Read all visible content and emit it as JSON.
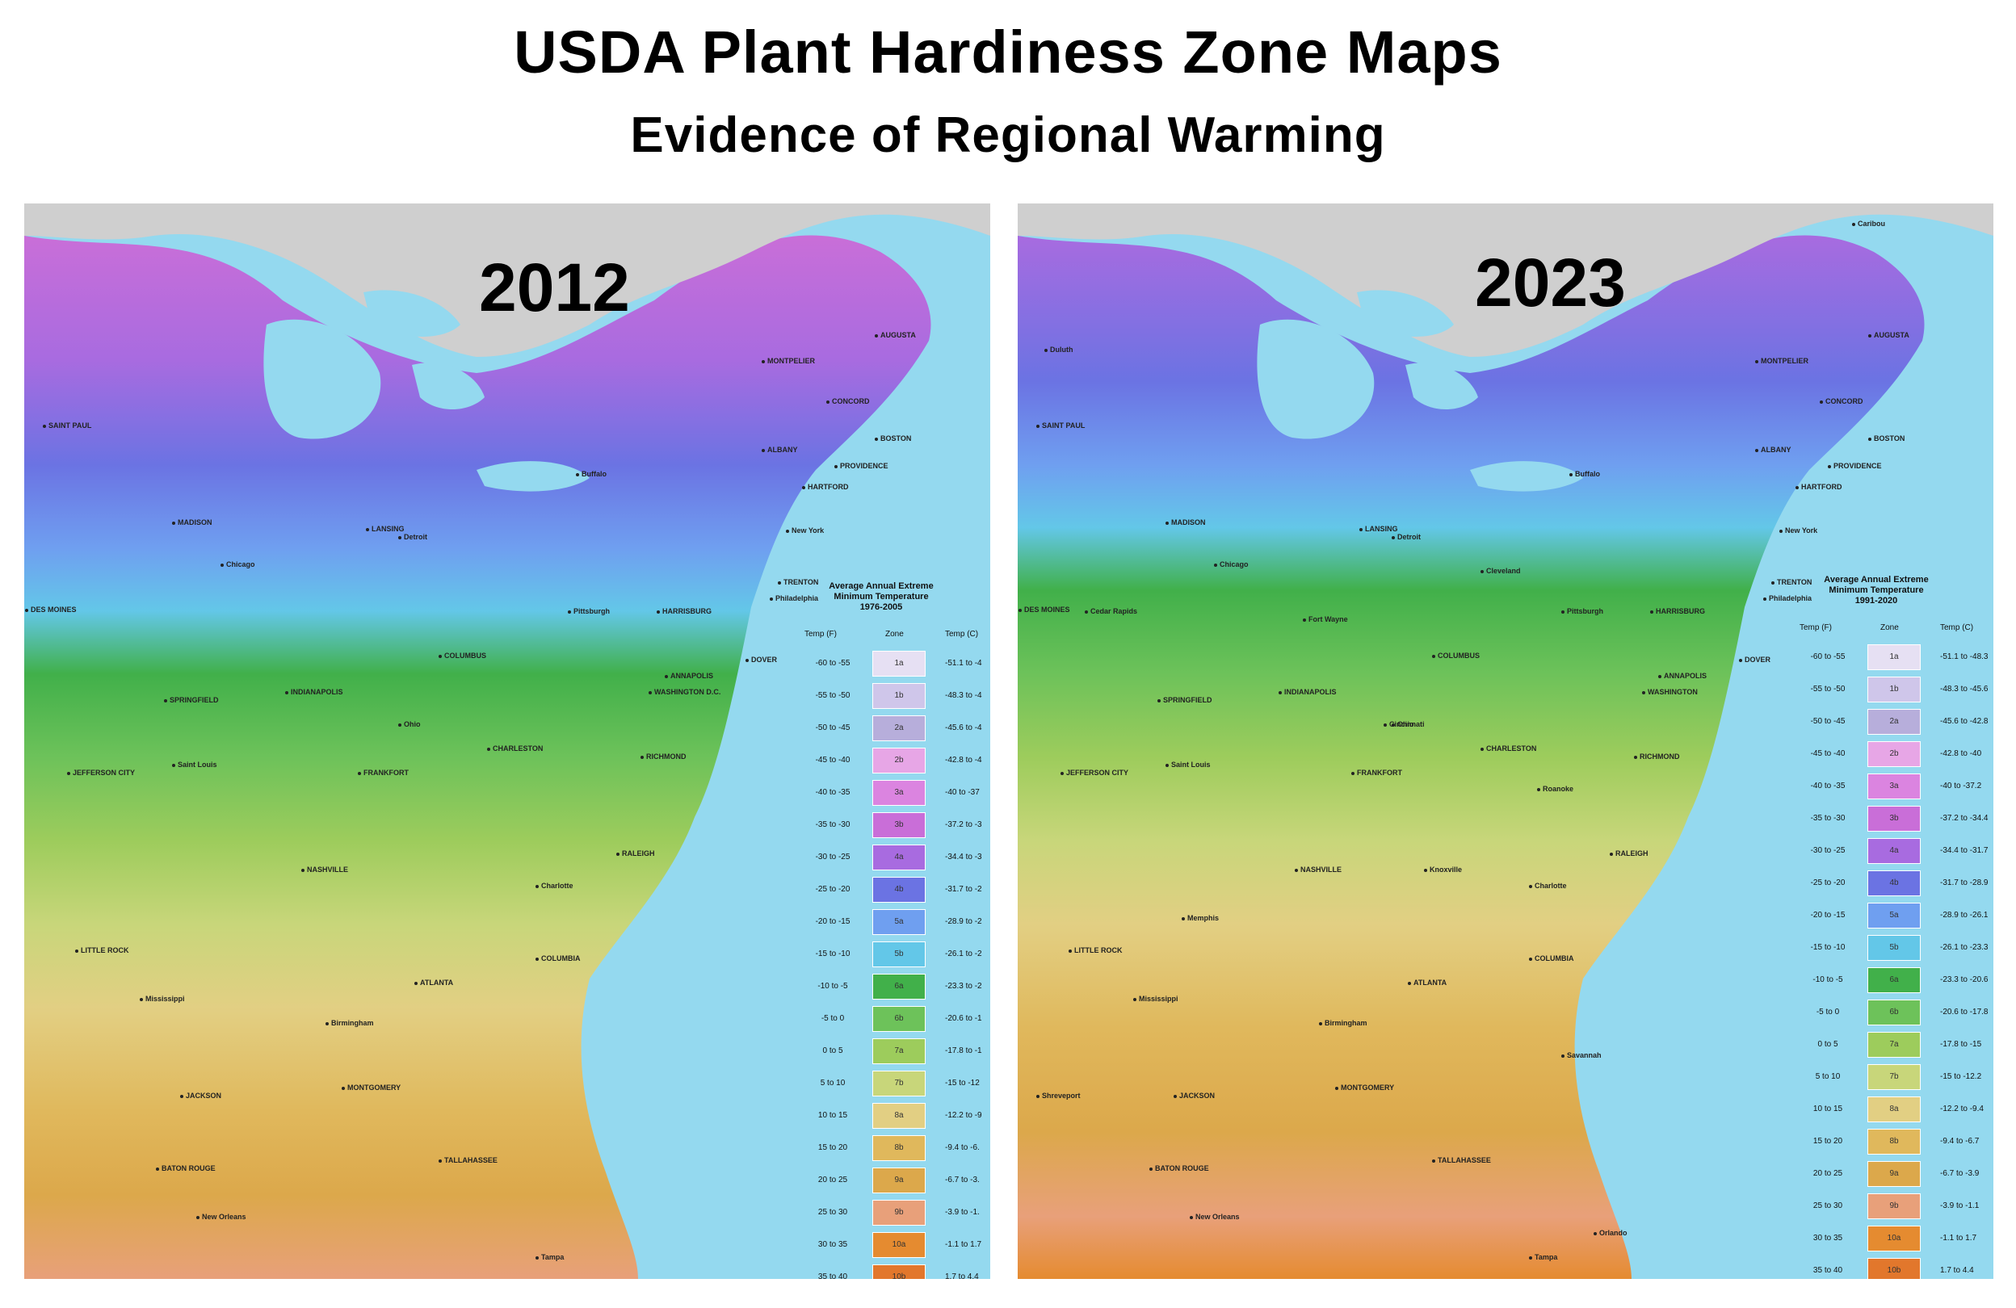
{
  "title": "USDA Plant Hardiness Zone Maps",
  "subtitle": "Evidence of Regional Warming",
  "zone_colors": {
    "1a": "#e6e0f3",
    "1b": "#cfc6ea",
    "2a": "#b7aedb",
    "2b": "#e7a6e6",
    "3a": "#db84e0",
    "3b": "#c96ed8",
    "4a": "#a86be0",
    "4b": "#6b73e3",
    "5a": "#6f9ff0",
    "5b": "#63c7e8",
    "6a": "#41b04a",
    "6b": "#6dc25a",
    "7a": "#9dcc5c",
    "7b": "#c8d67a",
    "8a": "#e2cf83",
    "8b": "#e0b85c",
    "9a": "#dca84b",
    "9b": "#e8a07a",
    "10a": "#e58b30",
    "10b": "#e2772c"
  },
  "maps": [
    {
      "year": "2012",
      "legend": {
        "title": [
          "Average Annual Extreme",
          "Minimum Temperature",
          "1976-2005"
        ],
        "headers": [
          "Temp (F)",
          "Zone",
          "Temp (C)"
        ],
        "rows": [
          {
            "f": "-60 to -55",
            "zone": "1a",
            "c": "-51.1 to -4"
          },
          {
            "f": "-55 to -50",
            "zone": "1b",
            "c": "-48.3 to -4"
          },
          {
            "f": "-50 to -45",
            "zone": "2a",
            "c": "-45.6 to -4"
          },
          {
            "f": "-45 to -40",
            "zone": "2b",
            "c": "-42.8 to -4"
          },
          {
            "f": "-40 to -35",
            "zone": "3a",
            "c": "-40 to -37"
          },
          {
            "f": "-35 to -30",
            "zone": "3b",
            "c": "-37.2 to -3"
          },
          {
            "f": "-30 to -25",
            "zone": "4a",
            "c": "-34.4 to -3"
          },
          {
            "f": "-25 to -20",
            "zone": "4b",
            "c": "-31.7 to -2"
          },
          {
            "f": "-20 to -15",
            "zone": "5a",
            "c": "-28.9 to -2"
          },
          {
            "f": "-15 to -10",
            "zone": "5b",
            "c": "-26.1 to -2"
          },
          {
            "f": "-10 to -5",
            "zone": "6a",
            "c": "-23.3 to -2"
          },
          {
            "f": "-5 to 0",
            "zone": "6b",
            "c": "-20.6 to -1"
          },
          {
            "f": "0 to 5",
            "zone": "7a",
            "c": "-17.8 to -1"
          },
          {
            "f": "5 to 10",
            "zone": "7b",
            "c": "-15 to -12"
          },
          {
            "f": "10 to 15",
            "zone": "8a",
            "c": "-12.2 to -9"
          },
          {
            "f": "15 to 20",
            "zone": "8b",
            "c": "-9.4 to -6."
          },
          {
            "f": "20 to 25",
            "zone": "9a",
            "c": "-6.7 to -3."
          },
          {
            "f": "25 to 30",
            "zone": "9b",
            "c": "-3.9 to -1."
          },
          {
            "f": "30 to 35",
            "zone": "10a",
            "c": "-1.1 to 1.7"
          },
          {
            "f": "35 to 40",
            "zone": "10b",
            "c": "1.7 to 4.4"
          }
        ]
      },
      "cities": [
        "AUGUSTA",
        "MONTPELIER",
        "CONCORD",
        "BOSTON",
        "ALBANY",
        "PROVIDENCE",
        "HARTFORD",
        "SAINT PAUL",
        "MADISON",
        "LANSING",
        "Detroit",
        "Chicago",
        "Buffalo",
        "New York",
        "TRENTON",
        "HARRISBURG",
        "Philadelphia",
        "Pittsburgh",
        "DES MOINES",
        "COLUMBUS",
        "DOVER",
        "ANNAPOLIS",
        "WASHINGTON D.C.",
        "SPRINGFIELD",
        "INDIANAPOLIS",
        "CHARLESTON",
        "JEFFERSON CITY",
        "Saint Louis",
        "FRANKFORT",
        "RICHMOND",
        "RALEIGH",
        "NASHVILLE",
        "Charlotte",
        "LITTLE ROCK",
        "COLUMBIA",
        "ATLANTA",
        "Birmingham",
        "MONTGOMERY",
        "JACKSON",
        "TALLAHASSEE",
        "BATON ROUGE",
        "New Orleans",
        "Tampa",
        "Ohio",
        "Mississippi"
      ]
    },
    {
      "year": "2023",
      "legend": {
        "title": [
          "Average Annual Extreme",
          "Minimum Temperature",
          "1991-2020"
        ],
        "headers": [
          "Temp (F)",
          "Zone",
          "Temp (C)"
        ],
        "rows": [
          {
            "f": "-60 to -55",
            "zone": "1a",
            "c": "-51.1 to -48.3"
          },
          {
            "f": "-55 to -50",
            "zone": "1b",
            "c": "-48.3 to -45.6"
          },
          {
            "f": "-50 to -45",
            "zone": "2a",
            "c": "-45.6 to -42.8"
          },
          {
            "f": "-45 to -40",
            "zone": "2b",
            "c": "-42.8 to -40"
          },
          {
            "f": "-40 to -35",
            "zone": "3a",
            "c": "-40 to -37.2"
          },
          {
            "f": "-35 to -30",
            "zone": "3b",
            "c": "-37.2 to -34.4"
          },
          {
            "f": "-30 to -25",
            "zone": "4a",
            "c": "-34.4 to -31.7"
          },
          {
            "f": "-25 to -20",
            "zone": "4b",
            "c": "-31.7 to -28.9"
          },
          {
            "f": "-20 to -15",
            "zone": "5a",
            "c": "-28.9 to -26.1"
          },
          {
            "f": "-15 to -10",
            "zone": "5b",
            "c": "-26.1 to -23.3"
          },
          {
            "f": "-10 to -5",
            "zone": "6a",
            "c": "-23.3 to -20.6"
          },
          {
            "f": "-5 to 0",
            "zone": "6b",
            "c": "-20.6 to -17.8"
          },
          {
            "f": "0 to 5",
            "zone": "7a",
            "c": "-17.8 to -15"
          },
          {
            "f": "5 to 10",
            "zone": "7b",
            "c": "-15 to -12.2"
          },
          {
            "f": "10 to 15",
            "zone": "8a",
            "c": "-12.2 to -9.4"
          },
          {
            "f": "15 to 20",
            "zone": "8b",
            "c": "-9.4 to -6.7"
          },
          {
            "f": "20 to 25",
            "zone": "9a",
            "c": "-6.7 to -3.9"
          },
          {
            "f": "25 to 30",
            "zone": "9b",
            "c": "-3.9 to -1.1"
          },
          {
            "f": "30 to 35",
            "zone": "10a",
            "c": "-1.1 to 1.7"
          },
          {
            "f": "35 to 40",
            "zone": "10b",
            "c": "1.7 to 4.4"
          }
        ]
      },
      "cities": [
        "Caribou",
        "Duluth",
        "AUGUSTA",
        "MONTPELIER",
        "CONCORD",
        "BOSTON",
        "ALBANY",
        "PROVIDENCE",
        "HARTFORD",
        "SAINT PAUL",
        "MADISON",
        "LANSING",
        "Detroit",
        "Chicago",
        "Buffalo",
        "Cleveland",
        "New York",
        "TRENTON",
        "HARRISBURG",
        "Philadelphia",
        "Pittsburgh",
        "DES MOINES",
        "Cedar Rapids",
        "Fort Wayne",
        "COLUMBUS",
        "DOVER",
        "ANNAPOLIS",
        "WASHINGTON",
        "SPRINGFIELD",
        "INDIANAPOLIS",
        "Cincinnati",
        "CHARLESTON",
        "JEFFERSON CITY",
        "Saint Louis",
        "FRANKFORT",
        "RICHMOND",
        "Roanoke",
        "RALEIGH",
        "NASHVILLE",
        "Knoxville",
        "Charlotte",
        "Memphis",
        "LITTLE ROCK",
        "COLUMBIA",
        "ATLANTA",
        "Birmingham",
        "Savannah",
        "MONTGOMERY",
        "JACKSON",
        "Shreveport",
        "TALLAHASSEE",
        "BATON ROUGE",
        "New Orleans",
        "Orlando",
        "Tampa",
        "Ohio",
        "Mississippi"
      ]
    }
  ]
}
